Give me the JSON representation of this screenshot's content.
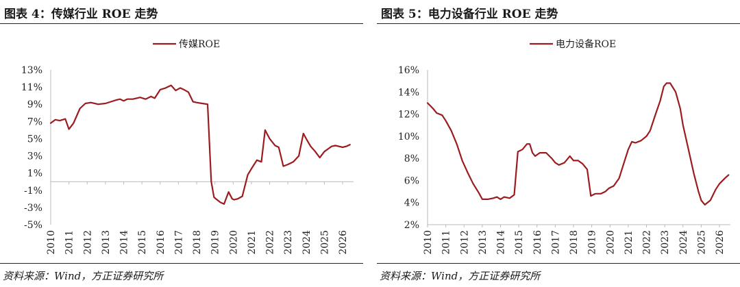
{
  "colors": {
    "series": "#9b1b1e",
    "axis": "#b8b8b8",
    "text": "#222222"
  },
  "panels": [
    {
      "title": "图表 4：传媒行业 ROE 走势",
      "source": "资料来源：Wind，方正证券研究所",
      "chart_data": {
        "type": "line",
        "title": "",
        "xlabel": "",
        "ylabel": "",
        "legend_position": "top-center",
        "x_ticks": [
          "2010",
          "2011",
          "2012",
          "2013",
          "2014",
          "2015",
          "2016",
          "2017",
          "2018",
          "2019",
          "2020",
          "2021",
          "2022",
          "2023",
          "2024",
          "2025",
          "2026"
        ],
        "y_ticks": [
          "13%",
          "11%",
          "9%",
          "7%",
          "5%",
          "3%",
          "1%",
          "-1%",
          "-3%",
          "-5%"
        ],
        "ylim": [
          -5,
          13
        ],
        "xlim": [
          2010,
          2026.6
        ],
        "grid": false,
        "series": [
          {
            "name": "传媒ROE",
            "x": [
              2010.0,
              2010.25,
              2010.5,
              2010.8,
              2011.0,
              2011.25,
              2011.6,
              2011.9,
              2012.2,
              2012.6,
              2013.0,
              2013.3,
              2013.6,
              2013.8,
              2014.0,
              2014.2,
              2014.5,
              2014.9,
              2015.2,
              2015.5,
              2015.7,
              2016.0,
              2016.3,
              2016.6,
              2016.85,
              2017.1,
              2017.3,
              2017.55,
              2017.8,
              2018.0,
              2018.3,
              2018.6,
              2018.8,
              2018.95,
              2019.05,
              2019.3,
              2019.5,
              2019.75,
              2019.95,
              2020.05,
              2020.25,
              2020.5,
              2020.8,
              2021.0,
              2021.3,
              2021.55,
              2021.75,
              2022.0,
              2022.3,
              2022.5,
              2022.75,
              2023.0,
              2023.3,
              2023.6,
              2023.85,
              2024.0,
              2024.25,
              2024.5,
              2024.75,
              2025.0,
              2025.2,
              2025.4,
              2025.6,
              2025.8,
              2026.0,
              2026.2,
              2026.4
            ],
            "y": [
              6.8,
              7.2,
              7.1,
              7.3,
              6.1,
              6.8,
              8.5,
              9.1,
              9.2,
              9.0,
              9.1,
              9.3,
              9.5,
              9.6,
              9.4,
              9.6,
              9.6,
              9.8,
              9.6,
              9.9,
              9.7,
              10.7,
              10.9,
              11.2,
              10.6,
              10.9,
              10.7,
              10.4,
              9.3,
              9.2,
              9.1,
              9.0,
              0.0,
              -1.8,
              -2.0,
              -2.4,
              -2.6,
              -1.2,
              -2.0,
              -2.1,
              -2.0,
              -1.7,
              0.8,
              1.5,
              2.5,
              2.3,
              6.0,
              5.0,
              4.2,
              4.0,
              1.8,
              2.0,
              2.3,
              3.0,
              5.6,
              5.0,
              4.1,
              3.5,
              2.8,
              3.5,
              3.8,
              4.1,
              4.2,
              4.1,
              4.0,
              4.1,
              4.3
            ]
          }
        ]
      }
    },
    {
      "title": "图表 5：电力设备行业 ROE 走势",
      "source": "资料来源：Wind，方正证券研究所",
      "chart_data": {
        "type": "line",
        "title": "",
        "xlabel": "",
        "ylabel": "",
        "legend_position": "top-center",
        "x_ticks": [
          "2010",
          "2011",
          "2012",
          "2013",
          "2014",
          "2015",
          "2016",
          "2017",
          "2018",
          "2019",
          "2020",
          "2021",
          "2022",
          "2023",
          "2024",
          "2025",
          "2026"
        ],
        "y_ticks": [
          "16%",
          "14%",
          "12%",
          "10%",
          "8%",
          "6%",
          "4%",
          "2%"
        ],
        "ylim": [
          2,
          16
        ],
        "xlim": [
          2010,
          2026.6
        ],
        "grid": false,
        "series": [
          {
            "name": "电力设备ROE",
            "x": [
              2010.0,
              2010.3,
              2010.5,
              2010.8,
              2011.0,
              2011.3,
              2011.6,
              2011.9,
              2012.2,
              2012.5,
              2012.8,
              2013.0,
              2013.3,
              2013.6,
              2013.8,
              2014.0,
              2014.2,
              2014.5,
              2014.75,
              2014.95,
              2015.2,
              2015.45,
              2015.6,
              2015.75,
              2015.9,
              2016.15,
              2016.5,
              2016.8,
              2017.0,
              2017.2,
              2017.5,
              2017.8,
              2018.0,
              2018.25,
              2018.5,
              2018.75,
              2018.95,
              2019.2,
              2019.5,
              2019.75,
              2019.95,
              2020.2,
              2020.5,
              2020.75,
              2021.0,
              2021.2,
              2021.4,
              2021.7,
              2022.0,
              2022.2,
              2022.5,
              2022.75,
              2022.95,
              2023.1,
              2023.3,
              2023.6,
              2023.85,
              2024.0,
              2024.3,
              2024.6,
              2024.85,
              2025.0,
              2025.2,
              2025.5,
              2025.8,
              2026.0,
              2026.3,
              2026.5
            ],
            "y": [
              13.0,
              12.5,
              12.1,
              11.9,
              11.4,
              10.5,
              9.3,
              7.8,
              6.7,
              5.7,
              4.9,
              4.3,
              4.3,
              4.4,
              4.5,
              4.3,
              4.5,
              4.4,
              4.7,
              8.6,
              8.8,
              9.3,
              9.3,
              8.5,
              8.2,
              8.5,
              8.5,
              8.0,
              7.6,
              7.4,
              7.6,
              8.2,
              7.8,
              7.8,
              7.5,
              7.0,
              4.6,
              4.8,
              4.8,
              5.0,
              5.3,
              5.5,
              6.2,
              7.5,
              8.8,
              9.5,
              9.4,
              9.6,
              10.0,
              10.5,
              12.0,
              13.2,
              14.5,
              14.8,
              14.8,
              14.0,
              12.5,
              11.0,
              8.8,
              6.6,
              5.0,
              4.2,
              3.8,
              4.2,
              5.2,
              5.7,
              6.2,
              6.5
            ]
          }
        ]
      }
    }
  ]
}
